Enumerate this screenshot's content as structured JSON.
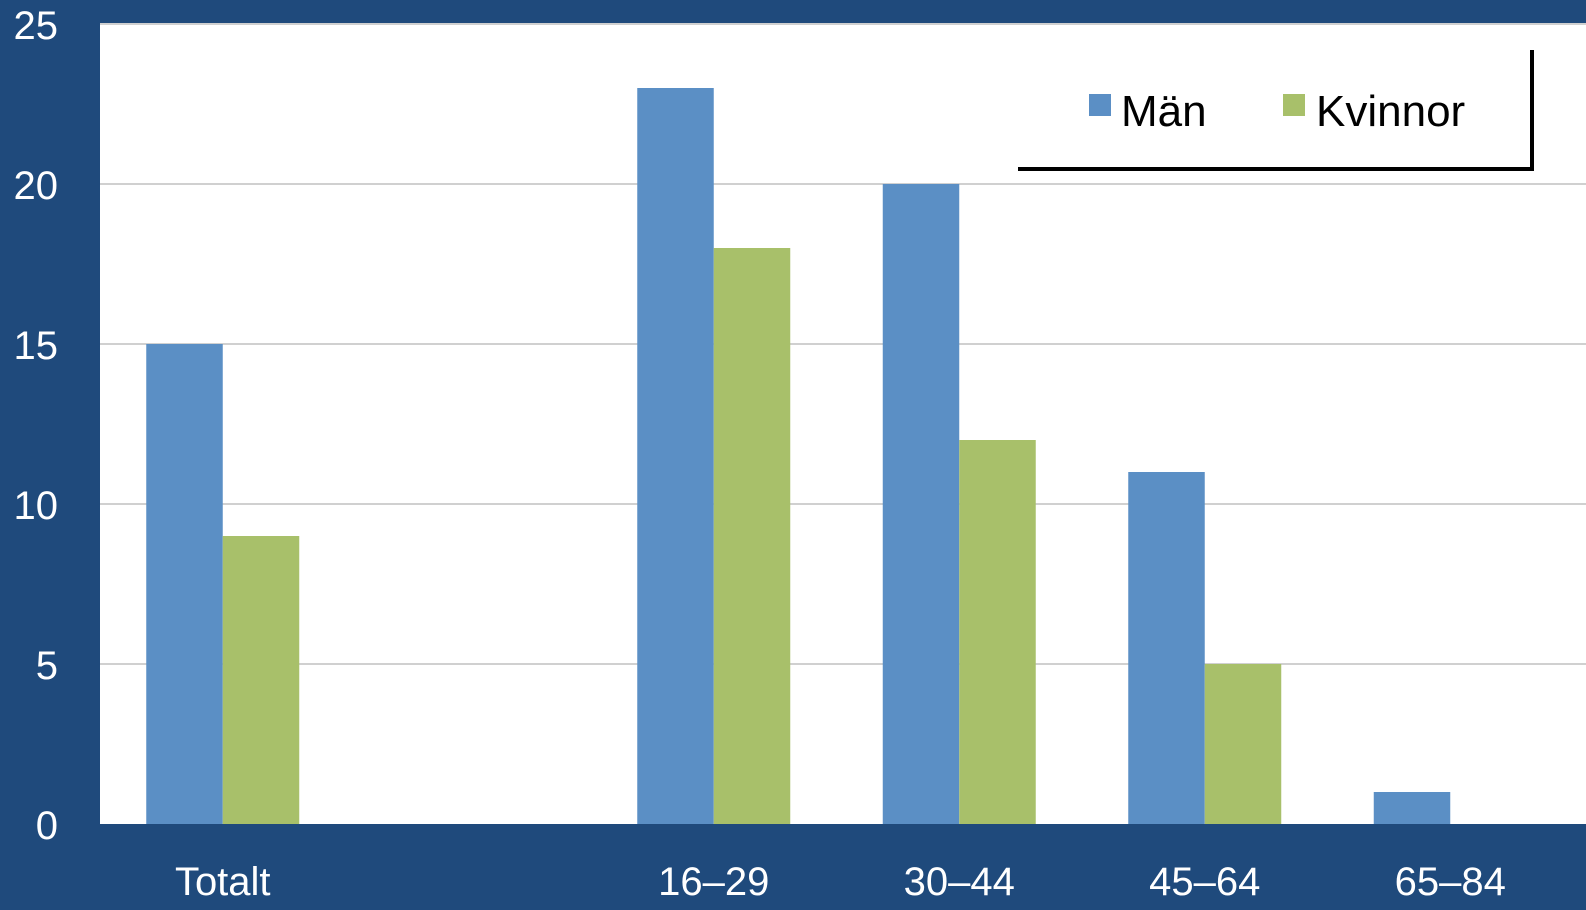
{
  "colors": {
    "background": "#1f4a7c",
    "plot_area": "#ffffff",
    "gridline": "#d0d0d0",
    "axis_text": "#ffffff",
    "legend_text": "#000000"
  },
  "chart_data": {
    "type": "bar",
    "title": "",
    "xlabel": "",
    "ylabel": "",
    "categories": [
      "Totalt",
      "",
      "16–29",
      "30–44",
      "45–64",
      "65–84"
    ],
    "ylim": [
      0,
      25
    ],
    "yticks": [
      0,
      5,
      10,
      15,
      20,
      25
    ],
    "grid": true,
    "legend_position": "top-right",
    "series": [
      {
        "name": "Män",
        "color": "#5b8fc5",
        "values": [
          15,
          null,
          23,
          20,
          11,
          1
        ]
      },
      {
        "name": "Kvinnor",
        "color": "#a8c06a",
        "values": [
          9,
          null,
          18,
          12,
          5,
          0
        ]
      }
    ]
  }
}
